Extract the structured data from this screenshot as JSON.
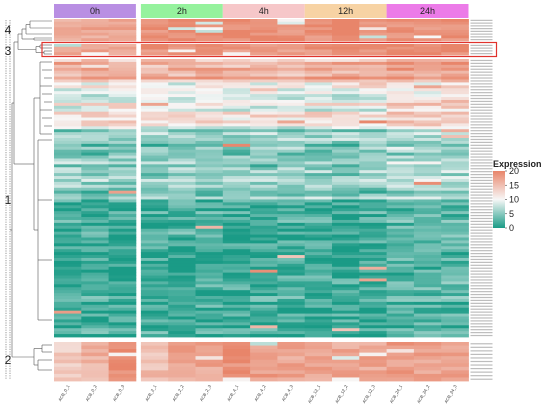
{
  "chart_data": {
    "type": "heatmap",
    "title": "",
    "xlabel": "",
    "ylabel": "",
    "groups": [
      {
        "label": "0h",
        "color": "#b98fe3"
      },
      {
        "label": "2h",
        "color": "#95f29d"
      },
      {
        "label": "4h",
        "color": "#f6c7c9"
      },
      {
        "label": "12h",
        "color": "#f7d3a4"
      },
      {
        "label": "24h",
        "color": "#ec7be8"
      }
    ],
    "samples": [
      "ACB_0_1",
      "ACB_0_2",
      "ACB_0_3",
      "ACB_2_1",
      "ACB_2_2",
      "ACB_2_3",
      "ACB_4_1",
      "ACB_4_2",
      "ACB_4_3",
      "ACB_12_1",
      "ACB_12_2",
      "ACB_12_3",
      "ACB_24_1",
      "ACB_24_2",
      "ACB_24_3"
    ],
    "clusters": [
      {
        "label": "4",
        "rows": 8
      },
      {
        "label": "3",
        "rows": 4
      },
      {
        "label": "1",
        "rows": 95
      },
      {
        "label": "2",
        "rows": 11
      }
    ],
    "legend": {
      "title": "Expression",
      "position": "right",
      "min": 0,
      "max": 20,
      "ticks": [
        20,
        15,
        10,
        5,
        0
      ],
      "colors": [
        "#1a9b86",
        "#f7f7f7",
        "#e8856a"
      ]
    },
    "highlight": {
      "cluster": "3",
      "color": "#e0322c"
    },
    "cluster_profiles": {
      "4": [
        17,
        17,
        17,
        19,
        19,
        19,
        19,
        19,
        19,
        19,
        19,
        19,
        19,
        19,
        19
      ],
      "3": [
        17,
        17,
        17,
        19,
        19,
        18,
        18,
        18,
        18,
        19,
        19,
        19,
        19,
        19,
        19
      ],
      "2": [
        14,
        16,
        19,
        15,
        17,
        17,
        19,
        18,
        17,
        17,
        17,
        17,
        18,
        17,
        17
      ]
    }
  }
}
